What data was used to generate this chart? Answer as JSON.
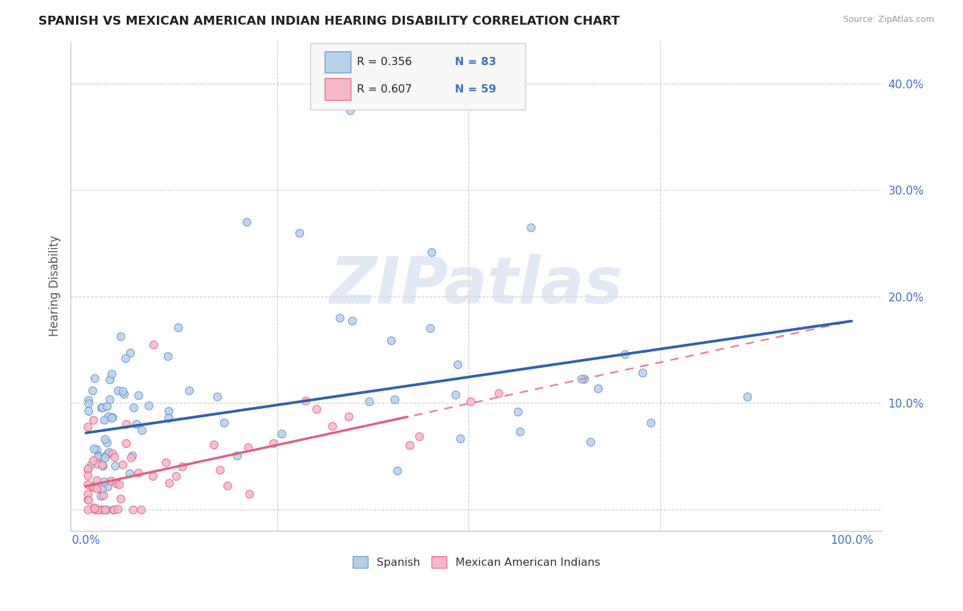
{
  "title": "SPANISH VS MEXICAN AMERICAN INDIAN HEARING DISABILITY CORRELATION CHART",
  "source": "Source: ZipAtlas.com",
  "ylabel": "Hearing Disability",
  "ytick_values": [
    0.0,
    0.1,
    0.2,
    0.3,
    0.4
  ],
  "ytick_labels": [
    "",
    "10.0%",
    "20.0%",
    "30.0%",
    "40.0%"
  ],
  "xlim": [
    -0.02,
    1.04
  ],
  "ylim": [
    -0.02,
    0.44
  ],
  "legend_r1": "R = 0.356",
  "legend_n1": "N = 83",
  "legend_r2": "R = 0.607",
  "legend_n2": "N = 59",
  "color_spanish_fill": "#b8d0ea",
  "color_spanish_edge": "#6090c8",
  "color_mexican_fill": "#f5b8c8",
  "color_mexican_edge": "#e06080",
  "color_line_spanish": "#3060b0",
  "color_line_mexican": "#e06080",
  "color_line_dashed": "#e08898",
  "color_grid": "#cccccc",
  "color_text_blue": "#4472c4",
  "watermark_text": "ZIPatlas",
  "background_color": "#ffffff",
  "spanish_intercept": 0.072,
  "spanish_slope": 0.105,
  "mexican_intercept": 0.022,
  "mexican_slope": 0.155,
  "dashed_intercept": 0.022,
  "dashed_slope": 0.155
}
